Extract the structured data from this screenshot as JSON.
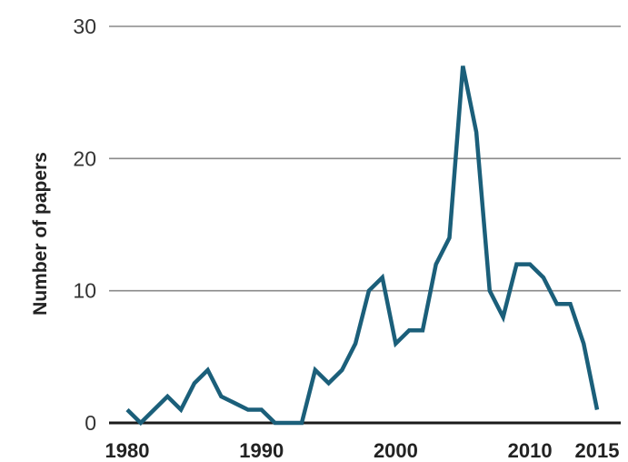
{
  "chart_data": {
    "type": "line",
    "title": "",
    "xlabel": "",
    "ylabel": "Number of papers",
    "xlim": [
      1980,
      2015
    ],
    "ylim": [
      0,
      30
    ],
    "grid": true,
    "yticks": [
      {
        "value": 0,
        "label": "0"
      },
      {
        "value": 10,
        "label": "10"
      },
      {
        "value": 20,
        "label": "20"
      },
      {
        "value": 30,
        "label": "30"
      }
    ],
    "xticks": [
      {
        "value": 1980,
        "label": "1980"
      },
      {
        "value": 1990,
        "label": "1990"
      },
      {
        "value": 2000,
        "label": "2000"
      },
      {
        "value": 2010,
        "label": "2010"
      },
      {
        "value": 2015,
        "label": "2015"
      }
    ],
    "series": [
      {
        "color": "#1b5f7a",
        "x": [
          1980,
          1981,
          1982,
          1983,
          1984,
          1985,
          1986,
          1987,
          1988,
          1989,
          1990,
          1991,
          1992,
          1993,
          1994,
          1995,
          1996,
          1997,
          1998,
          1999,
          2000,
          2001,
          2002,
          2003,
          2004,
          2005,
          2006,
          2007,
          2008,
          2009,
          2010,
          2011,
          2012,
          2013,
          2014,
          2015
        ],
        "y": [
          1,
          0,
          1,
          2,
          1,
          3,
          4,
          2,
          1.5,
          1,
          1,
          0,
          0,
          0,
          4,
          3,
          4,
          6,
          10,
          11,
          6,
          7,
          7,
          12,
          14,
          27,
          22,
          10,
          8,
          12,
          12,
          11,
          9,
          9,
          6,
          1
        ]
      }
    ]
  }
}
